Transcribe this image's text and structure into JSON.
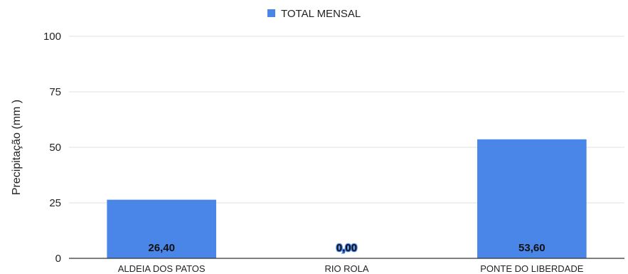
{
  "chart_data": {
    "type": "bar",
    "categories": [
      "ALDEIA DOS PATOS",
      "RIO ROLA",
      "PONTE DO LIBERDADE"
    ],
    "series": [
      {
        "name": "TOTAL MENSAL",
        "values": [
          26.4,
          0.0,
          53.6
        ],
        "data_labels": [
          "26,40",
          "0,00",
          "53,60"
        ],
        "color": "#4a86e8"
      }
    ],
    "ylabel": "Precipitação (mm )",
    "ylim": [
      0,
      100
    ],
    "yticks": [
      0,
      25,
      50,
      75,
      100
    ],
    "grid": true,
    "legend_position": "top-center",
    "gridline_color": "#e0e0e0",
    "axis_color": "#333333"
  }
}
